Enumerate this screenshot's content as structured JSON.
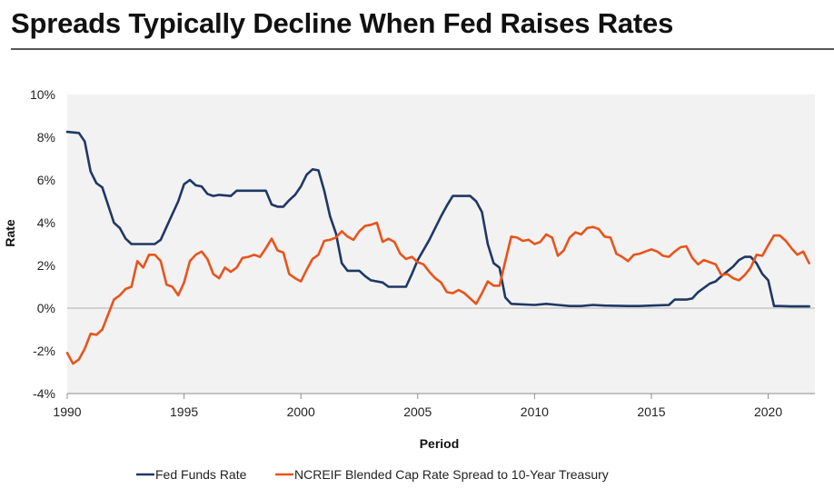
{
  "title": "Spreads Typically Decline When Fed Raises Rates",
  "colors": {
    "fed": "#1f3864",
    "spread": "#e8541c",
    "negative_tick": "#e8541c",
    "plot_bg": "#f2f2f2"
  },
  "chart_data": {
    "type": "line",
    "xlabel": "Period",
    "ylabel": "Rate",
    "xlim": [
      1990,
      2022
    ],
    "ylim": [
      -4,
      10
    ],
    "x_ticks": [
      "1990",
      "1995",
      "2000",
      "2005",
      "2010",
      "2015",
      "2020"
    ],
    "y_ticks": [
      "-4%",
      "-2%",
      "0%",
      "2%",
      "4%",
      "6%",
      "8%",
      "10%"
    ],
    "grid": false,
    "legend_position": "bottom",
    "series": [
      {
        "name": "Fed Funds Rate",
        "color": "#1f3864",
        "points": [
          [
            1990.0,
            8.25
          ],
          [
            1990.5,
            8.2
          ],
          [
            1990.75,
            7.8
          ],
          [
            1991.0,
            6.4
          ],
          [
            1991.25,
            5.85
          ],
          [
            1991.5,
            5.65
          ],
          [
            1992.0,
            4.0
          ],
          [
            1992.25,
            3.75
          ],
          [
            1992.5,
            3.25
          ],
          [
            1992.75,
            3.0
          ],
          [
            1993.0,
            3.0
          ],
          [
            1993.5,
            3.0
          ],
          [
            1993.75,
            3.0
          ],
          [
            1994.0,
            3.2
          ],
          [
            1994.25,
            3.8
          ],
          [
            1994.5,
            4.4
          ],
          [
            1994.75,
            5.0
          ],
          [
            1995.0,
            5.8
          ],
          [
            1995.25,
            6.0
          ],
          [
            1995.5,
            5.75
          ],
          [
            1995.75,
            5.7
          ],
          [
            1996.0,
            5.35
          ],
          [
            1996.25,
            5.25
          ],
          [
            1996.5,
            5.3
          ],
          [
            1997.0,
            5.25
          ],
          [
            1997.25,
            5.5
          ],
          [
            1997.5,
            5.5
          ],
          [
            1998.0,
            5.5
          ],
          [
            1998.5,
            5.5
          ],
          [
            1998.75,
            4.85
          ],
          [
            1999.0,
            4.75
          ],
          [
            1999.25,
            4.75
          ],
          [
            1999.5,
            5.05
          ],
          [
            1999.75,
            5.3
          ],
          [
            2000.0,
            5.7
          ],
          [
            2000.25,
            6.25
          ],
          [
            2000.5,
            6.5
          ],
          [
            2000.75,
            6.45
          ],
          [
            2001.0,
            5.5
          ],
          [
            2001.25,
            4.3
          ],
          [
            2001.5,
            3.5
          ],
          [
            2001.75,
            2.1
          ],
          [
            2002.0,
            1.75
          ],
          [
            2002.5,
            1.75
          ],
          [
            2002.75,
            1.5
          ],
          [
            2003.0,
            1.3
          ],
          [
            2003.5,
            1.2
          ],
          [
            2003.75,
            1.0
          ],
          [
            2004.0,
            1.0
          ],
          [
            2004.5,
            1.0
          ],
          [
            2004.75,
            1.6
          ],
          [
            2005.0,
            2.25
          ],
          [
            2005.5,
            3.2
          ],
          [
            2006.0,
            4.3
          ],
          [
            2006.25,
            4.8
          ],
          [
            2006.5,
            5.25
          ],
          [
            2007.0,
            5.25
          ],
          [
            2007.25,
            5.25
          ],
          [
            2007.5,
            5.0
          ],
          [
            2007.75,
            4.5
          ],
          [
            2008.0,
            3.0
          ],
          [
            2008.25,
            2.1
          ],
          [
            2008.5,
            1.9
          ],
          [
            2008.75,
            0.5
          ],
          [
            2009.0,
            0.2
          ],
          [
            2010.0,
            0.15
          ],
          [
            2010.5,
            0.2
          ],
          [
            2011.0,
            0.15
          ],
          [
            2011.5,
            0.1
          ],
          [
            2012.0,
            0.1
          ],
          [
            2012.5,
            0.15
          ],
          [
            2013.0,
            0.12
          ],
          [
            2014.0,
            0.1
          ],
          [
            2014.5,
            0.1
          ],
          [
            2015.0,
            0.12
          ],
          [
            2015.75,
            0.15
          ],
          [
            2016.0,
            0.4
          ],
          [
            2016.5,
            0.4
          ],
          [
            2016.75,
            0.45
          ],
          [
            2017.0,
            0.75
          ],
          [
            2017.5,
            1.15
          ],
          [
            2017.75,
            1.25
          ],
          [
            2018.0,
            1.5
          ],
          [
            2018.5,
            1.95
          ],
          [
            2018.75,
            2.25
          ],
          [
            2019.0,
            2.4
          ],
          [
            2019.25,
            2.4
          ],
          [
            2019.5,
            2.1
          ],
          [
            2019.75,
            1.6
          ],
          [
            2020.0,
            1.3
          ],
          [
            2020.25,
            0.1
          ],
          [
            2020.5,
            0.1
          ],
          [
            2021.0,
            0.08
          ],
          [
            2021.5,
            0.08
          ],
          [
            2021.75,
            0.08
          ]
        ]
      },
      {
        "name": "NCREIF Blended Cap Rate Spread to 10-Year Treasury",
        "color": "#e8541c",
        "points": [
          [
            1990.0,
            -2.1
          ],
          [
            1990.25,
            -2.6
          ],
          [
            1990.5,
            -2.4
          ],
          [
            1990.75,
            -1.9
          ],
          [
            1991.0,
            -1.2
          ],
          [
            1991.25,
            -1.25
          ],
          [
            1991.5,
            -1.0
          ],
          [
            1991.75,
            -0.3
          ],
          [
            1992.0,
            0.4
          ],
          [
            1992.25,
            0.6
          ],
          [
            1992.5,
            0.9
          ],
          [
            1992.75,
            1.0
          ],
          [
            1993.0,
            2.2
          ],
          [
            1993.25,
            1.9
          ],
          [
            1993.5,
            2.5
          ],
          [
            1993.75,
            2.5
          ],
          [
            1994.0,
            2.2
          ],
          [
            1994.25,
            1.1
          ],
          [
            1994.5,
            1.0
          ],
          [
            1994.75,
            0.6
          ],
          [
            1995.0,
            1.2
          ],
          [
            1995.25,
            2.2
          ],
          [
            1995.5,
            2.5
          ],
          [
            1995.75,
            2.65
          ],
          [
            1996.0,
            2.3
          ],
          [
            1996.25,
            1.6
          ],
          [
            1996.5,
            1.4
          ],
          [
            1996.75,
            1.9
          ],
          [
            1997.0,
            1.7
          ],
          [
            1997.25,
            1.9
          ],
          [
            1997.5,
            2.35
          ],
          [
            1997.75,
            2.4
          ],
          [
            1998.0,
            2.5
          ],
          [
            1998.25,
            2.4
          ],
          [
            1998.5,
            2.8
          ],
          [
            1998.75,
            3.25
          ],
          [
            1999.0,
            2.7
          ],
          [
            1999.25,
            2.6
          ],
          [
            1999.5,
            1.6
          ],
          [
            1999.75,
            1.4
          ],
          [
            2000.0,
            1.25
          ],
          [
            2000.25,
            1.8
          ],
          [
            2000.5,
            2.3
          ],
          [
            2000.75,
            2.5
          ],
          [
            2001.0,
            3.15
          ],
          [
            2001.25,
            3.2
          ],
          [
            2001.5,
            3.3
          ],
          [
            2001.75,
            3.6
          ],
          [
            2002.0,
            3.35
          ],
          [
            2002.25,
            3.2
          ],
          [
            2002.5,
            3.6
          ],
          [
            2002.75,
            3.85
          ],
          [
            2003.0,
            3.9
          ],
          [
            2003.25,
            4.0
          ],
          [
            2003.5,
            3.1
          ],
          [
            2003.75,
            3.25
          ],
          [
            2004.0,
            3.1
          ],
          [
            2004.25,
            2.55
          ],
          [
            2004.5,
            2.3
          ],
          [
            2004.75,
            2.4
          ],
          [
            2005.0,
            2.15
          ],
          [
            2005.25,
            2.05
          ],
          [
            2005.5,
            1.7
          ],
          [
            2005.75,
            1.4
          ],
          [
            2006.0,
            1.2
          ],
          [
            2006.25,
            0.75
          ],
          [
            2006.5,
            0.7
          ],
          [
            2006.75,
            0.85
          ],
          [
            2007.0,
            0.7
          ],
          [
            2007.25,
            0.45
          ],
          [
            2007.5,
            0.2
          ],
          [
            2007.75,
            0.7
          ],
          [
            2008.0,
            1.25
          ],
          [
            2008.25,
            1.05
          ],
          [
            2008.5,
            1.05
          ],
          [
            2008.75,
            2.2
          ],
          [
            2009.0,
            3.35
          ],
          [
            2009.25,
            3.3
          ],
          [
            2009.5,
            3.15
          ],
          [
            2009.75,
            3.2
          ],
          [
            2010.0,
            3.0
          ],
          [
            2010.25,
            3.1
          ],
          [
            2010.5,
            3.45
          ],
          [
            2010.75,
            3.3
          ],
          [
            2011.0,
            2.45
          ],
          [
            2011.25,
            2.7
          ],
          [
            2011.5,
            3.3
          ],
          [
            2011.75,
            3.55
          ],
          [
            2012.0,
            3.45
          ],
          [
            2012.25,
            3.75
          ],
          [
            2012.5,
            3.8
          ],
          [
            2012.75,
            3.7
          ],
          [
            2013.0,
            3.35
          ],
          [
            2013.25,
            3.3
          ],
          [
            2013.5,
            2.55
          ],
          [
            2013.75,
            2.4
          ],
          [
            2014.0,
            2.2
          ],
          [
            2014.25,
            2.5
          ],
          [
            2014.5,
            2.55
          ],
          [
            2014.75,
            2.65
          ],
          [
            2015.0,
            2.75
          ],
          [
            2015.25,
            2.65
          ],
          [
            2015.5,
            2.45
          ],
          [
            2015.75,
            2.4
          ],
          [
            2016.0,
            2.65
          ],
          [
            2016.25,
            2.85
          ],
          [
            2016.5,
            2.9
          ],
          [
            2016.75,
            2.35
          ],
          [
            2017.0,
            2.05
          ],
          [
            2017.25,
            2.25
          ],
          [
            2017.5,
            2.15
          ],
          [
            2017.75,
            2.05
          ],
          [
            2018.0,
            1.55
          ],
          [
            2018.25,
            1.6
          ],
          [
            2018.5,
            1.4
          ],
          [
            2018.75,
            1.3
          ],
          [
            2019.0,
            1.55
          ],
          [
            2019.25,
            1.9
          ],
          [
            2019.5,
            2.5
          ],
          [
            2019.75,
            2.45
          ],
          [
            2020.0,
            2.95
          ],
          [
            2020.25,
            3.4
          ],
          [
            2020.5,
            3.4
          ],
          [
            2020.75,
            3.15
          ],
          [
            2021.0,
            2.8
          ],
          [
            2021.25,
            2.5
          ],
          [
            2021.5,
            2.65
          ],
          [
            2021.75,
            2.1
          ]
        ]
      }
    ]
  }
}
